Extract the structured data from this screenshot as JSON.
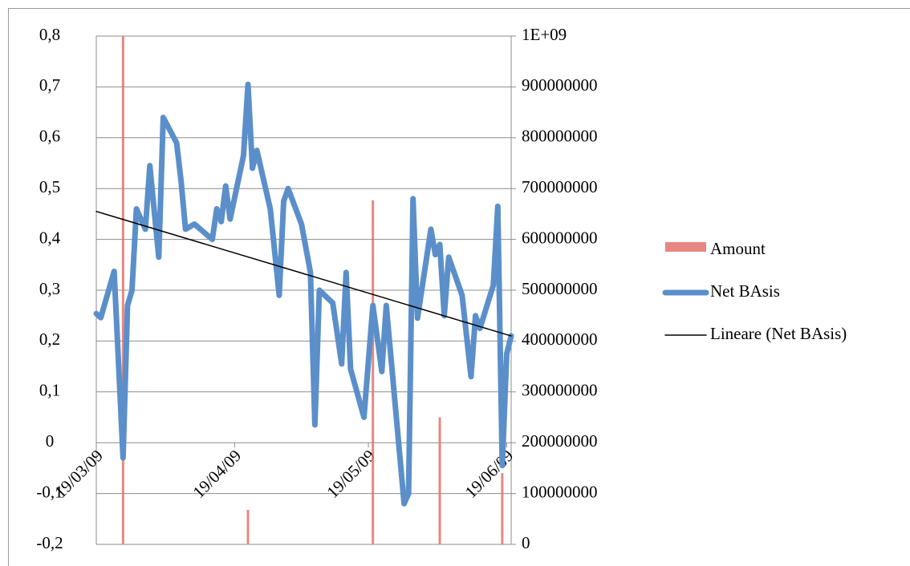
{
  "chart_data": {
    "type": "line",
    "xlim": [
      "2009-03-19",
      "2009-06-20"
    ],
    "xticks": [
      {
        "value": "2009-03-19",
        "label": "19/03/09"
      },
      {
        "value": "2009-04-19",
        "label": "19/04/09"
      },
      {
        "value": "2009-05-19",
        "label": "19/05/09"
      },
      {
        "value": "2009-06-19",
        "label": "19/06/09"
      }
    ],
    "ylim": [
      -0.2,
      0.8
    ],
    "yticks": [
      {
        "value": -0.2,
        "label": "-0,2"
      },
      {
        "value": -0.1,
        "label": "-0,1"
      },
      0,
      {
        "value": 0.1,
        "label": "0,1"
      },
      {
        "value": 0.2,
        "label": "0,2"
      },
      {
        "value": 0.3,
        "label": "0,3"
      },
      {
        "value": 0.4,
        "label": "0,4"
      },
      {
        "value": 0.5,
        "label": "0,5"
      },
      {
        "value": 0.6,
        "label": "0,6"
      },
      {
        "value": 0.7,
        "label": "0,7"
      },
      {
        "value": 0.8,
        "label": "0,8"
      }
    ],
    "y2lim": [
      0,
      1000000000
    ],
    "y2ticks": [
      0,
      100000000,
      200000000,
      300000000,
      400000000,
      500000000,
      600000000,
      700000000,
      800000000,
      900000000,
      {
        "value": 1000000000,
        "label": "1E+09"
      }
    ],
    "grid": true,
    "legend": "right",
    "series": [
      {
        "name": "Amount",
        "type": "bar",
        "axis": "y2",
        "color": "#e4726b",
        "x": [
          "2009-03-25",
          "2009-04-22",
          "2009-05-20",
          "2009-06-04",
          "2009-06-18"
        ],
        "values": [
          1000000000,
          68000000,
          677000000,
          250000000,
          140000000
        ]
      },
      {
        "name": "Net BAsis",
        "type": "line",
        "color": "#5b8fca",
        "x": [
          "2009-03-19",
          "2009-03-20",
          "2009-03-23",
          "2009-03-25",
          "2009-03-26",
          "2009-03-27",
          "2009-03-28",
          "2009-03-30",
          "2009-03-31",
          "2009-04-02",
          "2009-04-03",
          "2009-04-06",
          "2009-04-07",
          "2009-04-08",
          "2009-04-10",
          "2009-04-14",
          "2009-04-15",
          "2009-04-16",
          "2009-04-17",
          "2009-04-18",
          "2009-04-21",
          "2009-04-22",
          "2009-04-23",
          "2009-04-24",
          "2009-04-27",
          "2009-04-29",
          "2009-04-30",
          "2009-05-01",
          "2009-05-04",
          "2009-05-06",
          "2009-05-07",
          "2009-05-08",
          "2009-05-11",
          "2009-05-13",
          "2009-05-14",
          "2009-05-15",
          "2009-05-18",
          "2009-05-20",
          "2009-05-22",
          "2009-05-23",
          "2009-05-27",
          "2009-05-28",
          "2009-05-29",
          "2009-05-30",
          "2009-06-02",
          "2009-06-03",
          "2009-06-04",
          "2009-06-05",
          "2009-06-06",
          "2009-06-09",
          "2009-06-11",
          "2009-06-12",
          "2009-06-13",
          "2009-06-16",
          "2009-06-17",
          "2009-06-18",
          "2009-06-19",
          "2009-06-20"
        ],
        "values": [
          0.254,
          0.246,
          0.337,
          -0.03,
          0.27,
          0.3,
          0.46,
          0.42,
          0.545,
          0.365,
          0.64,
          0.59,
          0.515,
          0.42,
          0.43,
          0.4,
          0.46,
          0.435,
          0.505,
          0.44,
          0.565,
          0.705,
          0.54,
          0.575,
          0.46,
          0.29,
          0.475,
          0.5,
          0.43,
          0.335,
          0.035,
          0.3,
          0.275,
          0.155,
          0.335,
          0.145,
          0.05,
          0.27,
          0.14,
          0.27,
          -0.12,
          -0.1,
          0.48,
          0.245,
          0.42,
          0.37,
          0.39,
          0.25,
          0.365,
          0.29,
          0.13,
          0.25,
          0.225,
          0.31,
          0.465,
          -0.045,
          0.175,
          0.21
        ]
      },
      {
        "name": "Lineare (Net BAsis)",
        "type": "trend",
        "color": "#000000",
        "x": [
          "2009-03-19",
          "2009-06-20"
        ],
        "values": [
          0.455,
          0.21
        ]
      }
    ]
  }
}
